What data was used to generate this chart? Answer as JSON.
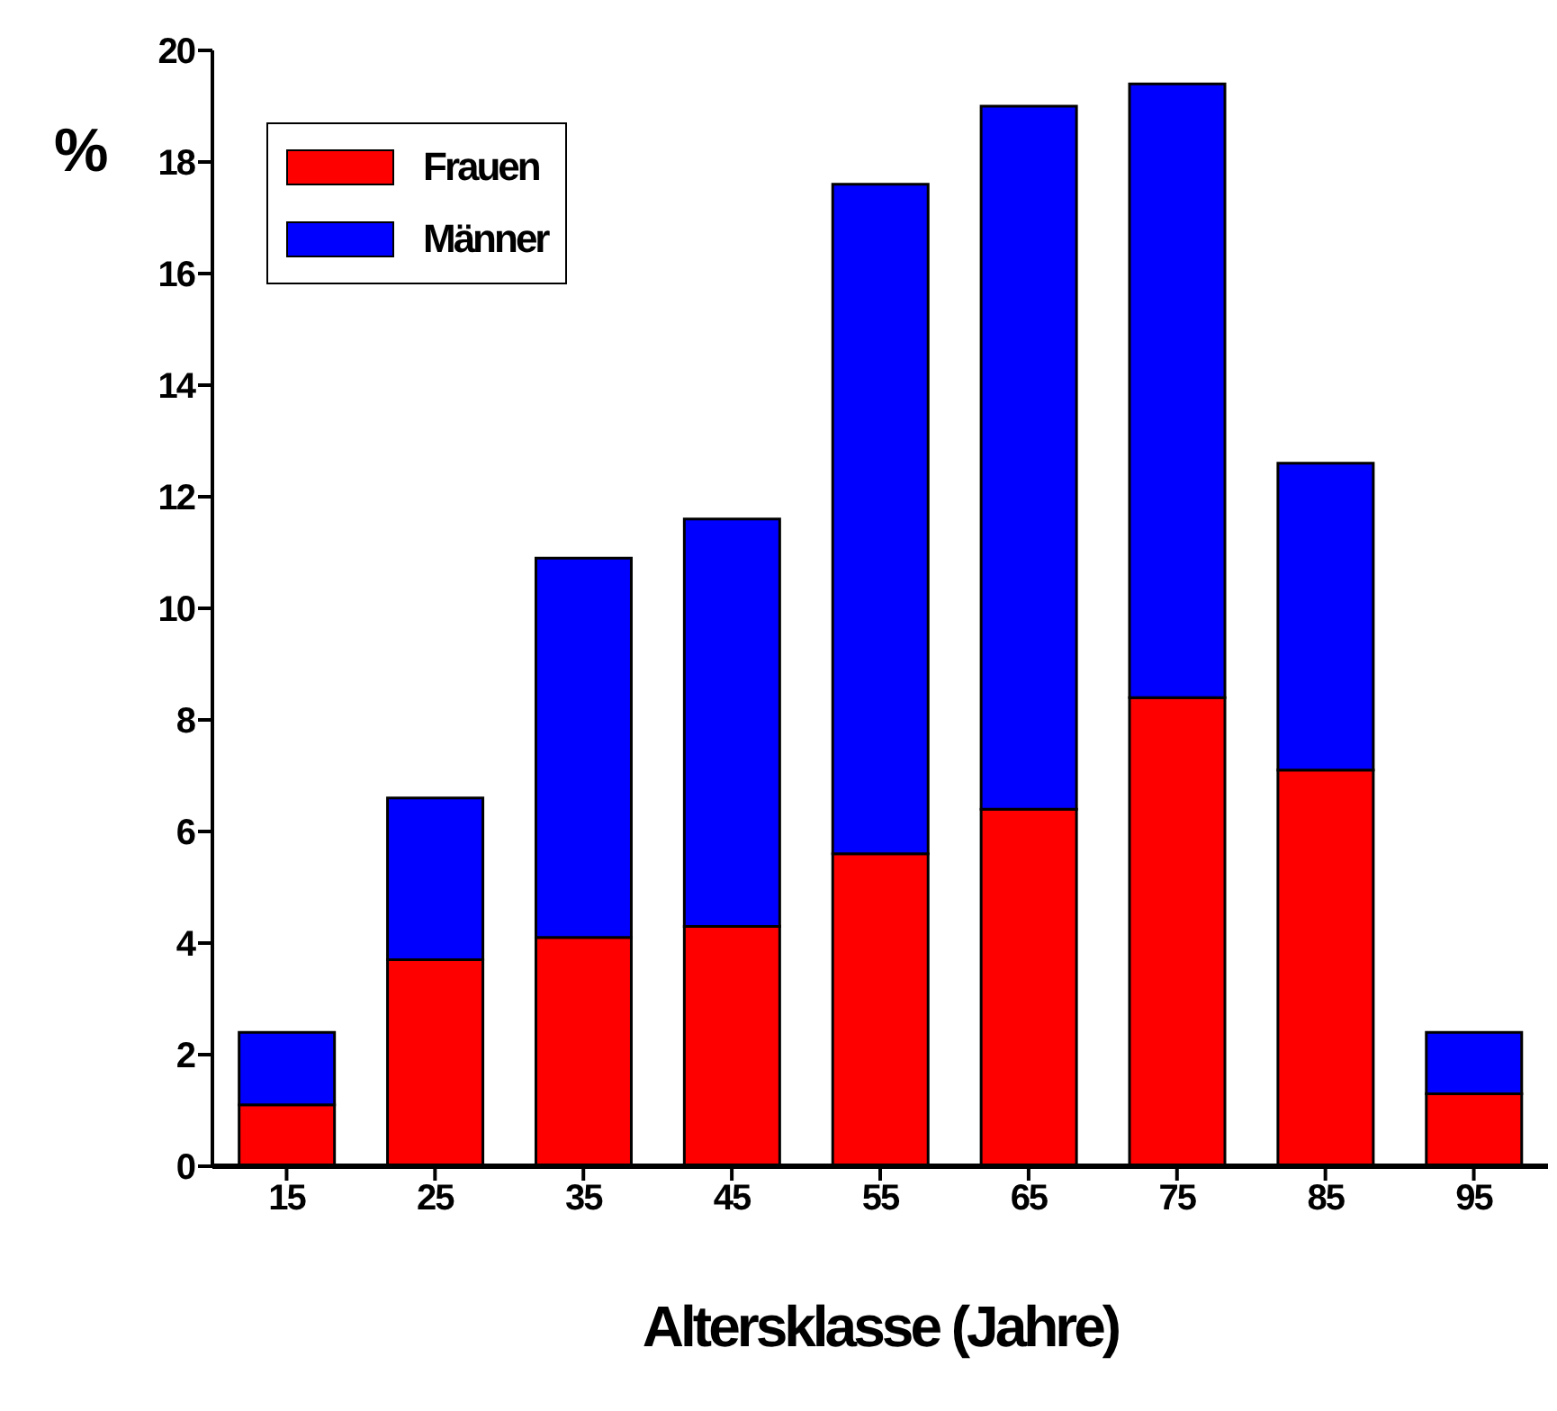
{
  "chart_data": {
    "type": "bar",
    "stacked": true,
    "xlabel": "Altersklasse (Jahre)",
    "ylabel": "%",
    "categories": [
      "15",
      "25",
      "35",
      "45",
      "55",
      "65",
      "75",
      "85",
      "95"
    ],
    "series": [
      {
        "name": "Frauen",
        "color": "#ff0000",
        "values": [
          1.1,
          3.7,
          4.1,
          4.3,
          5.6,
          6.4,
          8.4,
          7.1,
          1.3
        ]
      },
      {
        "name": "Männer",
        "color": "#0000ff",
        "values": [
          1.3,
          2.9,
          6.8,
          7.3,
          12.0,
          12.6,
          11.0,
          5.5,
          1.1
        ]
      }
    ],
    "ylim": [
      0,
      20
    ],
    "yticks": [
      0,
      2,
      4,
      6,
      8,
      10,
      12,
      14,
      16,
      18,
      20
    ],
    "grid": false,
    "legend": "top left"
  }
}
